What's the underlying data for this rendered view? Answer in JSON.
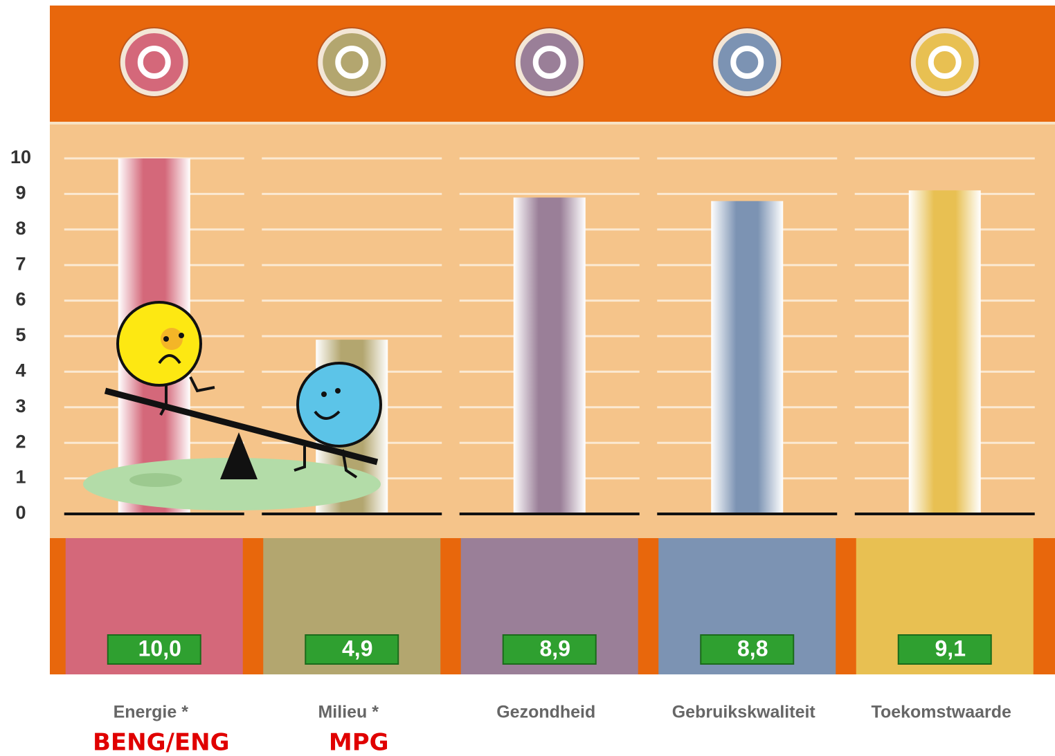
{
  "chart_data": {
    "type": "bar",
    "categories": [
      "Energie *",
      "Milieu *",
      "Gezondheid",
      "Gebruikskwaliteit",
      "Toekomstwaarde"
    ],
    "sublabels": [
      "BENG/ENG",
      "MPG",
      null,
      null,
      null
    ],
    "values": [
      10,
      4.9,
      8.9,
      8.8,
      9.1
    ],
    "value_labels": [
      "10,0",
      "4,9",
      "8,9",
      "8,8",
      "9,1"
    ],
    "colors": [
      "#d4687a",
      "#b3a66f",
      "#9a7f98",
      "#7c93b3",
      "#e8c052"
    ],
    "ylim": [
      0,
      10
    ],
    "yticks": [
      0,
      1,
      2,
      3,
      4,
      5,
      6,
      7,
      8,
      9,
      10
    ],
    "grid": true
  }
}
